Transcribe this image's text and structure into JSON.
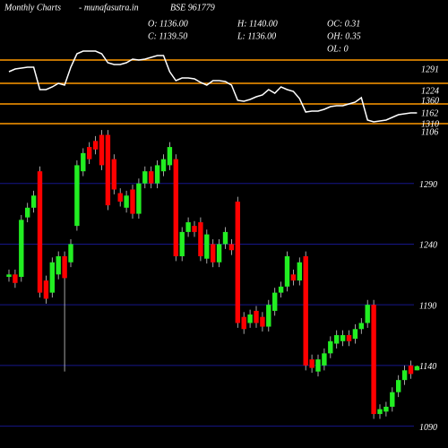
{
  "header": {
    "title": "Monthly Charts",
    "site": "- munafasutra.in",
    "symbol": "BSE 961779",
    "stats": [
      "O: 1136.00",
      "H: 1140.00",
      "OC: 0.31",
      "C: 1139.50",
      "L: 1136.00",
      "OH: 0.35",
      "OL: 0"
    ]
  },
  "chart_data": [
    {
      "type": "candlestick",
      "up_color": "#22ee22",
      "down_color": "#ff0000",
      "ylim": [
        1072,
        1340
      ],
      "yticks": [
        1290,
        1240,
        1190,
        1140,
        1090
      ],
      "grid": true,
      "grid_color": "#16168a",
      "open": [
        1213,
        1215,
        1213,
        1262,
        1270,
        1300,
        1210,
        1200,
        1215,
        1230,
        1225,
        1255,
        1300,
        1320,
        1325,
        1330,
        1330,
        1310,
        1282,
        1270,
        1285,
        1265,
        1290,
        1300,
        1290,
        1300,
        1305,
        1310,
        1230,
        1250,
        1255,
        1258,
        1228,
        1240,
        1225,
        1240,
        1240,
        1275,
        1180,
        1175,
        1185,
        1180,
        1172,
        1185,
        1200,
        1205,
        1215,
        1210,
        1230,
        1145,
        1135,
        1140,
        1150,
        1158,
        1160,
        1165,
        1162,
        1170,
        1175,
        1190,
        1100,
        1102,
        1106,
        1118,
        1128,
        1140,
        1136
      ],
      "high": [
        1219,
        1219,
        1264,
        1274,
        1284,
        1304,
        1214,
        1229,
        1234,
        1234,
        1244,
        1309,
        1319,
        1324,
        1329,
        1334,
        1334,
        1314,
        1286,
        1284,
        1289,
        1294,
        1304,
        1304,
        1309,
        1314,
        1324,
        1314,
        1254,
        1262,
        1259,
        1262,
        1252,
        1244,
        1244,
        1254,
        1244,
        1279,
        1184,
        1186,
        1189,
        1184,
        1194,
        1204,
        1209,
        1234,
        1219,
        1229,
        1234,
        1149,
        1149,
        1154,
        1164,
        1169,
        1169,
        1169,
        1174,
        1179,
        1194,
        1194,
        1108,
        1110,
        1122,
        1132,
        1140,
        1144,
        1140
      ],
      "low": [
        1209,
        1204,
        1209,
        1258,
        1266,
        1196,
        1191,
        1196,
        1211,
        1135,
        1221,
        1251,
        1296,
        1306,
        1314,
        1301,
        1268,
        1281,
        1271,
        1266,
        1261,
        1261,
        1286,
        1286,
        1286,
        1296,
        1301,
        1226,
        1226,
        1246,
        1246,
        1226,
        1224,
        1221,
        1221,
        1236,
        1231,
        1171,
        1166,
        1171,
        1171,
        1168,
        1168,
        1181,
        1196,
        1201,
        1206,
        1206,
        1136,
        1134,
        1131,
        1136,
        1146,
        1154,
        1156,
        1156,
        1158,
        1166,
        1171,
        1096,
        1096,
        1098,
        1102,
        1114,
        1124,
        1129,
        1136
      ],
      "close": [
        1215,
        1208,
        1260,
        1270,
        1280,
        1200,
        1195,
        1225,
        1230,
        1212,
        1240,
        1305,
        1315,
        1310,
        1318,
        1305,
        1272,
        1285,
        1275,
        1280,
        1265,
        1290,
        1300,
        1290,
        1305,
        1310,
        1320,
        1230,
        1250,
        1258,
        1250,
        1230,
        1248,
        1225,
        1240,
        1250,
        1235,
        1175,
        1170,
        1182,
        1175,
        1172,
        1190,
        1200,
        1205,
        1230,
        1210,
        1225,
        1140,
        1138,
        1145,
        1150,
        1160,
        1165,
        1165,
        1160,
        1170,
        1175,
        1190,
        1100,
        1104,
        1106,
        1118,
        1128,
        1136,
        1133,
        1139.5
      ]
    },
    {
      "type": "line",
      "color": "#ffffff",
      "ylim": [
        0,
        100
      ],
      "values": [
        70,
        73,
        74,
        75,
        75,
        50,
        50,
        53,
        57,
        55,
        75,
        90,
        93,
        93,
        93,
        90,
        80,
        78,
        78,
        80,
        84,
        83,
        84,
        86,
        88,
        88,
        70,
        60,
        63,
        63,
        62,
        58,
        55,
        60,
        60,
        59,
        55,
        38,
        37,
        39,
        42,
        44,
        50,
        46,
        53,
        50,
        48,
        40,
        25,
        26,
        26,
        28,
        31,
        32,
        32,
        34,
        36,
        41,
        16,
        14,
        15,
        16,
        19,
        22,
        23,
        24,
        24
      ],
      "levels": [
        83,
        57,
        34,
        12
      ],
      "level_color": "#ff9900",
      "annotations": [
        "1291",
        "1224",
        "1360",
        "1162",
        "1310",
        "1106"
      ]
    }
  ]
}
